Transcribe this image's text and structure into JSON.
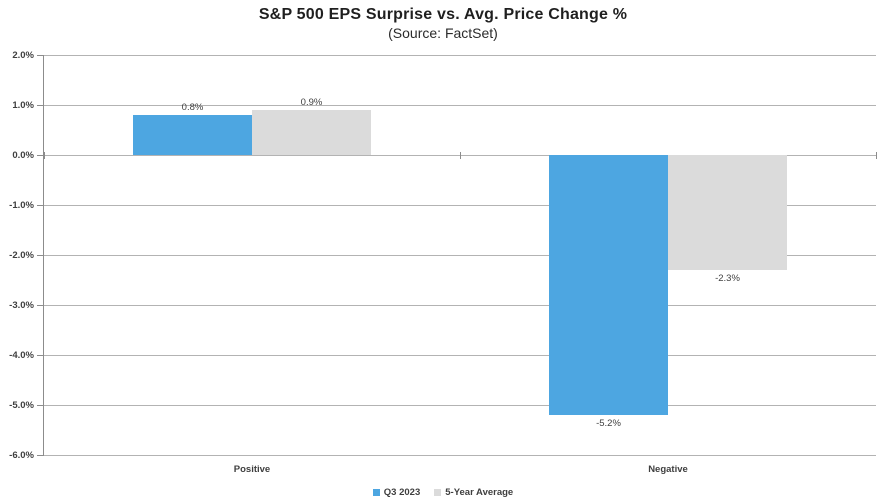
{
  "chart_data": {
    "type": "bar",
    "title": "S&P 500 EPS Surprise vs. Avg. Price Change %",
    "subtitle": "(Source: FactSet)",
    "categories": [
      "Positive",
      "Negative"
    ],
    "series": [
      {
        "name": "Q3 2023",
        "color": "#4DA6E1",
        "values": [
          0.8,
          -5.2
        ],
        "labels": [
          "0.8%",
          "-5.2%"
        ]
      },
      {
        "name": "5-Year Average",
        "color": "#DBDBDB",
        "values": [
          0.9,
          -2.3
        ],
        "labels": [
          "0.9%",
          "-2.3%"
        ]
      }
    ],
    "ylim": [
      -6.0,
      2.0
    ],
    "yticks": [
      "2.0%",
      "1.0%",
      "0.0%",
      "-1.0%",
      "-2.0%",
      "-3.0%",
      "-4.0%",
      "-5.0%",
      "-6.0%"
    ],
    "ytick_values": [
      2,
      1,
      0,
      -1,
      -2,
      -3,
      -4,
      -5,
      -6
    ],
    "grid": true,
    "legend_position": "bottom",
    "xlabel": "",
    "ylabel": ""
  },
  "colors": {
    "bar_blue": "#4DA6E1",
    "bar_gray": "#DBDBDB",
    "gridline": "#B3B3B3",
    "axis": "#8C8C8C",
    "label_text": "#3F3F3F",
    "title_text": "#1F1F1F",
    "background": "#FFFFFF"
  }
}
